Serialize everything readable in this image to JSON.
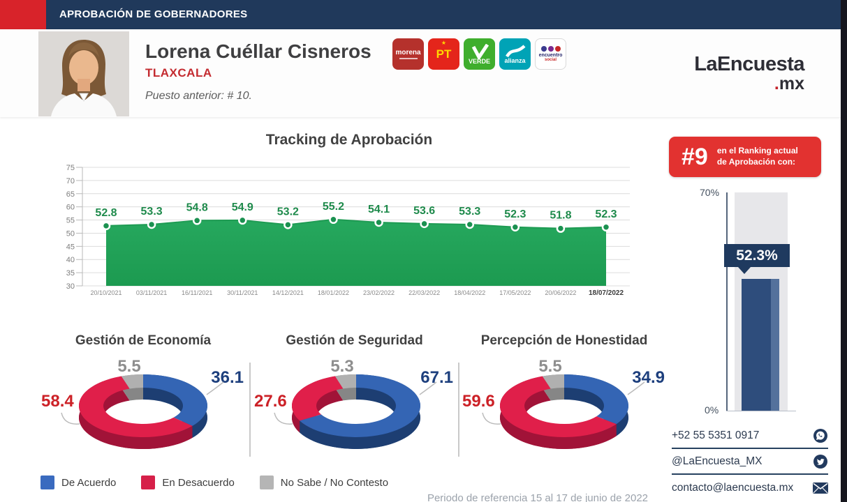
{
  "header": {
    "title": "APROBACIÓN DE GOBERNADORES"
  },
  "profile": {
    "name": "Lorena Cuéllar Cisneros",
    "state": "TLAXCALA",
    "previous_position": "Puesto anterior: # 10.",
    "parties": [
      {
        "id": "morena",
        "label": "morena"
      },
      {
        "id": "pt",
        "label": "PT"
      },
      {
        "id": "verde",
        "label": "VERDE"
      },
      {
        "id": "nueva-alianza",
        "label": "alianza"
      },
      {
        "id": "encuentro-social",
        "label": "encuentro",
        "label2": "social"
      }
    ]
  },
  "brand": {
    "name": "LaEncuesta",
    "dot": ".",
    "tld": "mx"
  },
  "ranking": {
    "rank": "#9",
    "caption": "en el Ranking actual de Aprobación con:"
  },
  "chart_data": [
    {
      "type": "area",
      "title": "Tracking de Aprobación",
      "x": [
        "20/10/2021",
        "03/11/2021",
        "16/11/2021",
        "30/11/2021",
        "14/12/2021",
        "18/01/2022",
        "23/02/2022",
        "22/03/2022",
        "18/04/2022",
        "17/05/2022",
        "20/06/2022",
        "18/07/2022"
      ],
      "values": [
        52.8,
        53.3,
        54.8,
        54.9,
        53.2,
        55.2,
        54.1,
        53.6,
        53.3,
        52.3,
        51.8,
        52.3
      ],
      "ylim": [
        30,
        75
      ],
      "ytick_step": 5,
      "grid": true,
      "series_color": "#22a458",
      "label_color": "#1e8a4b"
    },
    {
      "type": "bar",
      "categories": [
        "Aprobación"
      ],
      "values": [
        52.3
      ],
      "value_label": "52.3%",
      "ylim": [
        0,
        70
      ],
      "axis_labels": {
        "top": "70%",
        "bottom": "0%"
      },
      "bar_color": "#2e4d7c"
    },
    {
      "type": "pie",
      "title": "Gestión de Economía",
      "categories": [
        "De Acuerdo",
        "En Desacuerdo",
        "No Sabe / No Contesto"
      ],
      "values": [
        36.1,
        58.4,
        5.5
      ],
      "colors": [
        "#3465b4",
        "#e01f4a",
        "#b0b0b0"
      ]
    },
    {
      "type": "pie",
      "title": "Gestión de Seguridad",
      "categories": [
        "De Acuerdo",
        "En Desacuerdo",
        "No Sabe / No Contesto"
      ],
      "values": [
        67.1,
        27.6,
        5.3
      ],
      "colors": [
        "#3465b4",
        "#e01f4a",
        "#b0b0b0"
      ]
    },
    {
      "type": "pie",
      "title": "Percepción de Honestidad",
      "categories": [
        "De Acuerdo",
        "En Desacuerdo",
        "No Sabe / No Contesto"
      ],
      "values": [
        34.9,
        59.6,
        5.5
      ],
      "colors": [
        "#3465b4",
        "#e01f4a",
        "#b0b0b0"
      ]
    }
  ],
  "legend": {
    "items": [
      {
        "label": "De Acuerdo",
        "color": "#3a6bbf"
      },
      {
        "label": "En Desacuerdo",
        "color": "#d62049"
      },
      {
        "label": "No Sabe / No Contesto",
        "color": "#b5b5b5"
      }
    ]
  },
  "footer": {
    "reference_period": "Periodo de referencia 15 al 17 de junio de 2022"
  },
  "contact": {
    "rows": [
      {
        "label": "+52 55 5351 0917",
        "icon": "whatsapp-icon"
      },
      {
        "label": "@LaEncuesta_MX",
        "icon": "twitter-icon"
      },
      {
        "label": "contacto@laencuesta.mx",
        "icon": "mail-icon"
      }
    ]
  },
  "colors": {
    "accent_red": "#d8232a",
    "navy": "#20395b",
    "badge_red": "#e23230",
    "green": "#22a458"
  }
}
